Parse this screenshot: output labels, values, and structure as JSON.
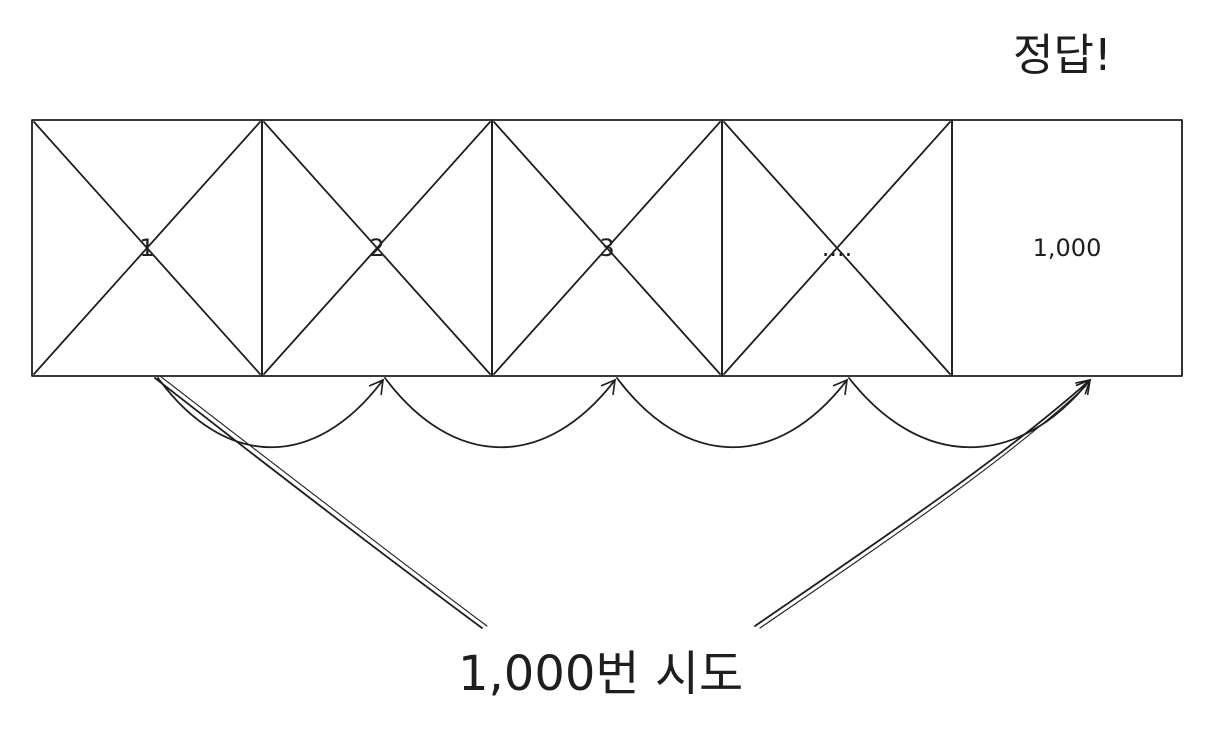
{
  "answer_label": "정답!",
  "cells": [
    {
      "label": "1",
      "crossed": true
    },
    {
      "label": "2",
      "crossed": true
    },
    {
      "label": "3",
      "crossed": true
    },
    {
      "label": "....",
      "crossed": true
    },
    {
      "label": "1,000",
      "crossed": false
    }
  ],
  "tries_label": "1,000번 시도",
  "colors": {
    "stroke": "#1e1e1e",
    "background": "#ffffff"
  }
}
